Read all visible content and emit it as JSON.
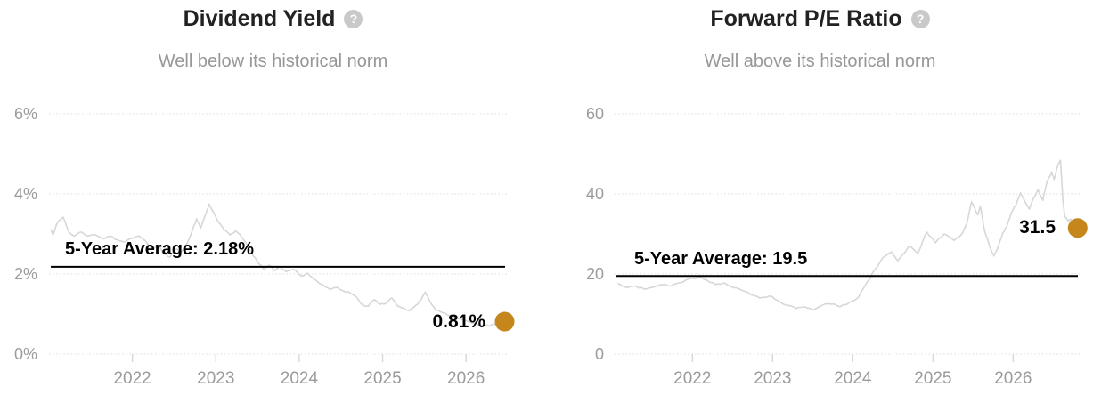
{
  "colors": {
    "accent_dot": "#c5861b",
    "series_line": "#d7d7d7",
    "average_line": "#000000",
    "grid": "#dcdcdc",
    "tick": "#d9d9d9",
    "title": "#222222",
    "subtitle": "#979797",
    "axis_label": "#9b9b9b"
  },
  "icons": {
    "question_glyph": "?"
  },
  "chart_data": [
    {
      "type": "line",
      "title": "Dividend Yield",
      "subtitle": "Well below its historical norm",
      "legend": "none",
      "grid": "dotted-horizontal",
      "y_axis": {
        "min": 0,
        "max": 6,
        "format": "percent",
        "ticks": [
          {
            "value": 6,
            "label": "6%"
          },
          {
            "value": 4,
            "label": "4%"
          },
          {
            "value": 2,
            "label": "2%"
          },
          {
            "value": 0,
            "label": "0%"
          }
        ]
      },
      "x_axis": {
        "min": 2021.0,
        "max": 2026.5,
        "ticks": [
          {
            "value": 2022,
            "label": "2022"
          },
          {
            "value": 2023,
            "label": "2023"
          },
          {
            "value": 2024,
            "label": "2024"
          },
          {
            "value": 2025,
            "label": "2025"
          },
          {
            "value": 2026,
            "label": "2026"
          }
        ]
      },
      "average": {
        "value": 2.18,
        "label": "5-Year Average: 2.18%"
      },
      "latest": {
        "value": 0.81,
        "label": "0.81%"
      },
      "points": [
        [
          2021.02,
          3.12
        ],
        [
          2021.05,
          2.98
        ],
        [
          2021.1,
          3.28
        ],
        [
          2021.17,
          3.42
        ],
        [
          2021.24,
          3.05
        ],
        [
          2021.3,
          2.95
        ],
        [
          2021.38,
          3.05
        ],
        [
          2021.46,
          2.95
        ],
        [
          2021.55,
          2.98
        ],
        [
          2021.64,
          2.88
        ],
        [
          2021.73,
          2.95
        ],
        [
          2021.82,
          2.85
        ],
        [
          2021.9,
          2.8
        ],
        [
          2021.97,
          2.88
        ],
        [
          2022.08,
          2.95
        ],
        [
          2022.16,
          2.82
        ],
        [
          2022.24,
          2.62
        ],
        [
          2022.31,
          2.72
        ],
        [
          2022.38,
          2.5
        ],
        [
          2022.45,
          2.42
        ],
        [
          2022.52,
          2.62
        ],
        [
          2022.59,
          2.56
        ],
        [
          2022.66,
          2.78
        ],
        [
          2022.72,
          3.1
        ],
        [
          2022.77,
          3.38
        ],
        [
          2022.82,
          3.15
        ],
        [
          2022.88,
          3.5
        ],
        [
          2022.92,
          3.75
        ],
        [
          2022.97,
          3.55
        ],
        [
          2023.03,
          3.3
        ],
        [
          2023.1,
          3.1
        ],
        [
          2023.17,
          2.98
        ],
        [
          2023.24,
          3.08
        ],
        [
          2023.31,
          2.92
        ],
        [
          2023.38,
          2.72
        ],
        [
          2023.45,
          2.45
        ],
        [
          2023.52,
          2.25
        ],
        [
          2023.58,
          2.12
        ],
        [
          2023.64,
          2.22
        ],
        [
          2023.7,
          2.08
        ],
        [
          2023.77,
          2.18
        ],
        [
          2023.84,
          2.06
        ],
        [
          2023.93,
          2.12
        ],
        [
          2024.03,
          1.95
        ],
        [
          2024.1,
          2.02
        ],
        [
          2024.17,
          1.88
        ],
        [
          2024.24,
          1.77
        ],
        [
          2024.31,
          1.68
        ],
        [
          2024.38,
          1.62
        ],
        [
          2024.46,
          1.66
        ],
        [
          2024.54,
          1.57
        ],
        [
          2024.61,
          1.53
        ],
        [
          2024.68,
          1.44
        ],
        [
          2024.76,
          1.22
        ],
        [
          2024.83,
          1.2
        ],
        [
          2024.9,
          1.36
        ],
        [
          2024.97,
          1.24
        ],
        [
          2025.04,
          1.27
        ],
        [
          2025.11,
          1.4
        ],
        [
          2025.18,
          1.2
        ],
        [
          2025.25,
          1.15
        ],
        [
          2025.32,
          1.08
        ],
        [
          2025.4,
          1.22
        ],
        [
          2025.46,
          1.35
        ],
        [
          2025.51,
          1.55
        ],
        [
          2025.57,
          1.3
        ],
        [
          2025.63,
          1.12
        ],
        [
          2025.7,
          1.05
        ],
        [
          2025.78,
          0.97
        ],
        [
          2025.86,
          0.92
        ],
        [
          2025.94,
          0.88
        ],
        [
          2026.02,
          0.82
        ],
        [
          2026.1,
          0.78
        ],
        [
          2026.18,
          0.72
        ],
        [
          2026.28,
          0.7
        ],
        [
          2026.35,
          0.75
        ],
        [
          2026.42,
          0.81
        ]
      ]
    },
    {
      "type": "line",
      "title": "Forward P/E Ratio",
      "subtitle": "Well above its historical norm",
      "legend": "none",
      "grid": "dotted-horizontal",
      "y_axis": {
        "min": 0,
        "max": 60,
        "format": "number",
        "ticks": [
          {
            "value": 60,
            "label": "60"
          },
          {
            "value": 40,
            "label": "40"
          },
          {
            "value": 20,
            "label": "20"
          },
          {
            "value": 0,
            "label": "0"
          }
        ]
      },
      "x_axis": {
        "min": 2021.03,
        "max": 2026.84,
        "ticks": [
          {
            "value": 2022,
            "label": "2022"
          },
          {
            "value": 2023,
            "label": "2023"
          },
          {
            "value": 2024,
            "label": "2024"
          },
          {
            "value": 2025,
            "label": "2025"
          },
          {
            "value": 2026,
            "label": "2026"
          }
        ]
      },
      "average": {
        "value": 19.5,
        "label": "5-Year Average: 19.5"
      },
      "latest": {
        "value": 31.5,
        "label": "31.5"
      },
      "points": [
        [
          2021.07,
          17.7
        ],
        [
          2021.18,
          16.6
        ],
        [
          2021.29,
          17.0
        ],
        [
          2021.4,
          16.2
        ],
        [
          2021.51,
          16.7
        ],
        [
          2021.62,
          17.3
        ],
        [
          2021.73,
          17.0
        ],
        [
          2021.84,
          17.8
        ],
        [
          2021.96,
          18.8
        ],
        [
          2022.07,
          19.2
        ],
        [
          2022.18,
          18.5
        ],
        [
          2022.29,
          17.4
        ],
        [
          2022.4,
          17.8
        ],
        [
          2022.51,
          16.6
        ],
        [
          2022.62,
          15.9
        ],
        [
          2022.73,
          14.8
        ],
        [
          2022.84,
          14.0
        ],
        [
          2022.96,
          14.5
        ],
        [
          2023.07,
          13.3
        ],
        [
          2023.18,
          12.2
        ],
        [
          2023.29,
          11.4
        ],
        [
          2023.4,
          11.8
        ],
        [
          2023.51,
          11.0
        ],
        [
          2023.62,
          12.2
        ],
        [
          2023.73,
          12.5
        ],
        [
          2023.84,
          11.8
        ],
        [
          2023.96,
          12.9
        ],
        [
          2024.07,
          14.2
        ],
        [
          2024.18,
          18.0
        ],
        [
          2024.29,
          21.5
        ],
        [
          2024.37,
          24.0
        ],
        [
          2024.48,
          25.5
        ],
        [
          2024.56,
          23.3
        ],
        [
          2024.7,
          27.0
        ],
        [
          2024.81,
          25.1
        ],
        [
          2024.92,
          30.5
        ],
        [
          2025.03,
          27.8
        ],
        [
          2025.14,
          30.0
        ],
        [
          2025.26,
          28.4
        ],
        [
          2025.37,
          30.2
        ],
        [
          2025.42,
          32.5
        ],
        [
          2025.48,
          38.0
        ],
        [
          2025.56,
          34.8
        ],
        [
          2025.59,
          37.0
        ],
        [
          2025.64,
          31.1
        ],
        [
          2025.7,
          27.3
        ],
        [
          2025.76,
          24.5
        ],
        [
          2025.81,
          26.7
        ],
        [
          2025.87,
          30.2
        ],
        [
          2025.92,
          31.8
        ],
        [
          2025.98,
          35.5
        ],
        [
          2026.03,
          37.0
        ],
        [
          2026.09,
          40.3
        ],
        [
          2026.14,
          38.4
        ],
        [
          2026.2,
          36.2
        ],
        [
          2026.26,
          39.2
        ],
        [
          2026.31,
          41.1
        ],
        [
          2026.37,
          38.4
        ],
        [
          2026.42,
          42.9
        ],
        [
          2026.48,
          45.5
        ],
        [
          2026.51,
          43.6
        ],
        [
          2026.56,
          47.3
        ],
        [
          2026.59,
          48.4
        ],
        [
          2026.62,
          38.4
        ],
        [
          2026.64,
          34.8
        ],
        [
          2026.68,
          33.3
        ],
        [
          2026.72,
          33.7
        ],
        [
          2026.76,
          31.5
        ]
      ]
    }
  ]
}
